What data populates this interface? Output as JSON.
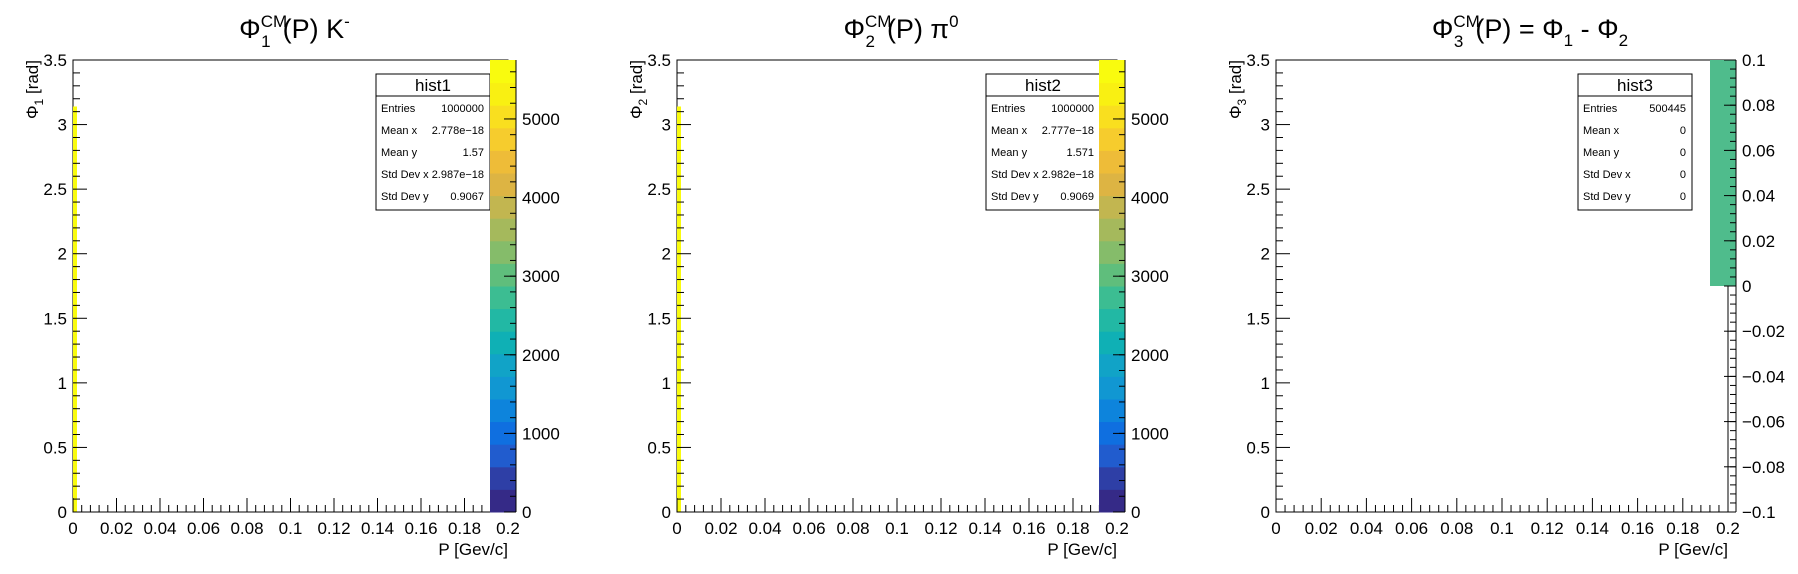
{
  "chart_data": [
    {
      "type": "heatmap",
      "name": "hist1",
      "title": {
        "sym": "Φ",
        "sub": "1",
        "sup": "CM",
        "rest": "(P) K",
        "rest_sup": "-"
      },
      "xlabel": "P [Gev/c]",
      "ylabel": {
        "sym": "Φ",
        "sub": "1",
        "unit": " [rad]"
      },
      "xlim": [
        0,
        0.2
      ],
      "ylim": [
        0,
        3.5
      ],
      "xticks": [
        "0",
        "0.02",
        "0.04",
        "0.06",
        "0.08",
        "0.1",
        "0.12",
        "0.14",
        "0.16",
        "0.18",
        "0.2"
      ],
      "yticks": [
        "0",
        "0.5",
        "1",
        "1.5",
        "2",
        "2.5",
        "3",
        "3.5"
      ],
      "zlim": [
        0,
        5750
      ],
      "zticks": [
        "0",
        "1000",
        "2000",
        "3000",
        "4000",
        "5000"
      ],
      "zcolors": [
        "#352a87",
        "#2e3fa6",
        "#215cce",
        "#0f6fe0",
        "#0d84dc",
        "#1197d2",
        "#11a3c7",
        "#0fb0b5",
        "#22b8a4",
        "#3cbd92",
        "#5fbe7c",
        "#85bc6a",
        "#a5b95c",
        "#c2b650",
        "#ddb443",
        "#eebc38",
        "#f6cc2d",
        "#f9df1f",
        "#f9f012",
        "#f9fb0e"
      ],
      "data_points": [
        {
          "x": 0.0,
          "ymin": 0,
          "ymax": 3.14,
          "z": 5700
        }
      ],
      "stats": [
        {
          "label": "Entries",
          "value": "1000000"
        },
        {
          "label": "Mean x",
          "value": "2.778e−18"
        },
        {
          "label": "Mean y",
          "value": "1.57"
        },
        {
          "label": "Std Dev x",
          "value": "2.987e−18"
        },
        {
          "label": "Std Dev y",
          "value": "0.9067"
        }
      ]
    },
    {
      "type": "heatmap",
      "name": "hist2",
      "title": {
        "sym": "Φ",
        "sub": "2",
        "sup": "CM",
        "rest": "(P) π",
        "rest_sup": "0"
      },
      "xlabel": "P [Gev/c]",
      "ylabel": {
        "sym": "Φ",
        "sub": "2",
        "unit": " [rad]"
      },
      "xlim": [
        0,
        0.2
      ],
      "ylim": [
        0,
        3.5
      ],
      "xticks": [
        "0",
        "0.02",
        "0.04",
        "0.06",
        "0.08",
        "0.1",
        "0.12",
        "0.14",
        "0.16",
        "0.18",
        "0.2"
      ],
      "yticks": [
        "0",
        "0.5",
        "1",
        "1.5",
        "2",
        "2.5",
        "3",
        "3.5"
      ],
      "zlim": [
        0,
        5750
      ],
      "zticks": [
        "0",
        "1000",
        "2000",
        "3000",
        "4000",
        "5000"
      ],
      "zcolors": [
        "#352a87",
        "#2e3fa6",
        "#215cce",
        "#0f6fe0",
        "#0d84dc",
        "#1197d2",
        "#11a3c7",
        "#0fb0b5",
        "#22b8a4",
        "#3cbd92",
        "#5fbe7c",
        "#85bc6a",
        "#a5b95c",
        "#c2b650",
        "#ddb443",
        "#eebc38",
        "#f6cc2d",
        "#f9df1f",
        "#f9f012",
        "#f9fb0e"
      ],
      "data_points": [
        {
          "x": 0.0,
          "ymin": 0,
          "ymax": 3.14,
          "z": 5700
        }
      ],
      "stats": [
        {
          "label": "Entries",
          "value": "1000000"
        },
        {
          "label": "Mean x",
          "value": "2.777e−18"
        },
        {
          "label": "Mean y",
          "value": "1.571"
        },
        {
          "label": "Std Dev x",
          "value": "2.982e−18"
        },
        {
          "label": "Std Dev y",
          "value": "0.9069"
        }
      ]
    },
    {
      "type": "heatmap",
      "name": "hist3",
      "title": {
        "sym": "Φ",
        "sub": "3",
        "sup": "CM",
        "rest": "(P) = Φ",
        "rest_sub": "1",
        "rest2": " - Φ",
        "rest2_sub": "2"
      },
      "xlabel": "P [Gev/c]",
      "ylabel": {
        "sym": "Φ",
        "sub": "3",
        "unit": " [rad]"
      },
      "xlim": [
        0,
        0.2
      ],
      "ylim": [
        0,
        3.5
      ],
      "xticks": [
        "0",
        "0.02",
        "0.04",
        "0.06",
        "0.08",
        "0.1",
        "0.12",
        "0.14",
        "0.16",
        "0.18",
        "0.2"
      ],
      "yticks": [
        "0",
        "0.5",
        "1",
        "1.5",
        "2",
        "2.5",
        "3",
        "3.5"
      ],
      "zlim": [
        -0.1,
        0.1
      ],
      "zticks": [
        "−0.1",
        "−0.08",
        "−0.06",
        "−0.04",
        "−0.02",
        "0",
        "0.02",
        "0.04",
        "0.06",
        "0.08",
        "0.1"
      ],
      "zcolors": [
        "#4fbc8c"
      ],
      "zfill_range": [
        0,
        0.1
      ],
      "data_points": [],
      "stats": [
        {
          "label": "Entries",
          "value": "500445"
        },
        {
          "label": "Mean x",
          "value": "0"
        },
        {
          "label": "Mean y",
          "value": "0"
        },
        {
          "label": "Std Dev x",
          "value": "0"
        },
        {
          "label": "Std Dev y",
          "value": "0"
        }
      ]
    }
  ]
}
